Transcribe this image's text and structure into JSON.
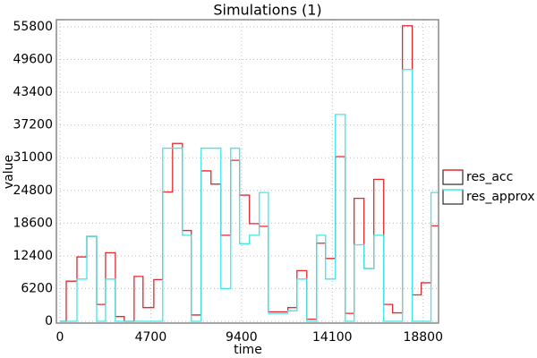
{
  "chart_data": {
    "type": "step",
    "title": "Simulations (1)",
    "xlabel": "time",
    "ylabel": "value",
    "x": [
      0,
      324,
      880,
      1390,
      1900,
      2360,
      2870,
      3330,
      3840,
      4300,
      4860,
      5320,
      5830,
      6340,
      6800,
      7310,
      7820,
      8330,
      8840,
      9300,
      9810,
      10320,
      10790,
      11300,
      11800,
      12270,
      12780,
      13290,
      13750,
      14260,
      14770,
      15230,
      15740,
      16250,
      16760,
      17220,
      17730,
      18240,
      18700,
      19210
    ],
    "series": [
      {
        "name": "res_acc",
        "color": "#e8262b",
        "values": [
          0,
          7600,
          12200,
          16100,
          3200,
          13000,
          900,
          0,
          8500,
          2600,
          7900,
          24500,
          33700,
          17200,
          1200,
          28500,
          26000,
          16300,
          30500,
          23900,
          18500,
          18000,
          1800,
          1800,
          2600,
          9600,
          400,
          14800,
          11900,
          31200,
          1500,
          23300,
          10000,
          26900,
          3200,
          1600,
          56000,
          5000,
          7300,
          18100
        ]
      },
      {
        "name": "res_approx",
        "color": "#3ce8e8",
        "values": [
          0,
          0,
          8000,
          16100,
          0,
          8000,
          0,
          0,
          0,
          0,
          0,
          32800,
          32800,
          16300,
          0,
          32800,
          32800,
          6200,
          32800,
          14700,
          16300,
          24400,
          1500,
          1500,
          2000,
          8000,
          0,
          16300,
          8000,
          39200,
          0,
          14500,
          10000,
          16300,
          0,
          0,
          47700,
          0,
          0,
          24400
        ]
      }
    ],
    "xlim": [
      -185,
      19600
    ],
    "xticks": [
      0,
      4700,
      9400,
      14100,
      18800
    ],
    "ylim": [
      -340,
      57150
    ],
    "yticks": [
      0,
      6200,
      12400,
      18600,
      24800,
      31000,
      37200,
      43400,
      49600,
      55800
    ],
    "grid": true,
    "legend": "right"
  }
}
